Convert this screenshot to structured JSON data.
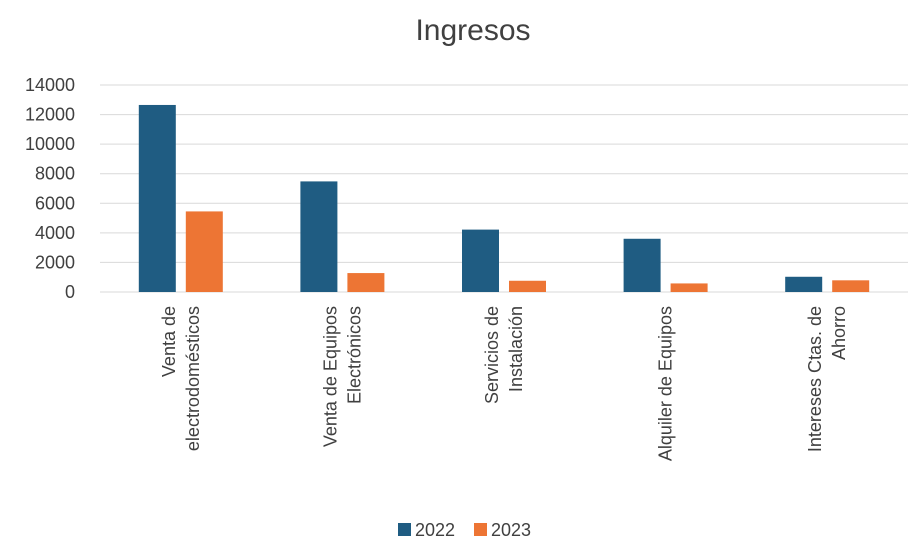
{
  "chart_data": {
    "type": "bar",
    "title": "Ingresos",
    "categories": [
      [
        "Venta de",
        "electrodomésticos"
      ],
      [
        "Venta de Equipos",
        "Electrónicos"
      ],
      [
        "Servicios de",
        "Instalación"
      ],
      [
        "Alquiler de Equipos"
      ],
      [
        "Intereses Ctas. de",
        "Ahorro"
      ]
    ],
    "series": [
      {
        "name": "2022",
        "color": "#1f5c82",
        "values": [
          12650,
          7480,
          4220,
          3600,
          1030
        ]
      },
      {
        "name": "2023",
        "color": "#ed7534",
        "values": [
          5450,
          1280,
          760,
          580,
          790
        ]
      }
    ],
    "ylim": [
      0,
      14000
    ],
    "yticks": [
      0,
      2000,
      4000,
      6000,
      8000,
      10000,
      12000,
      14000
    ],
    "grid": true,
    "legend": "bottom",
    "xlabel": "",
    "ylabel": ""
  }
}
